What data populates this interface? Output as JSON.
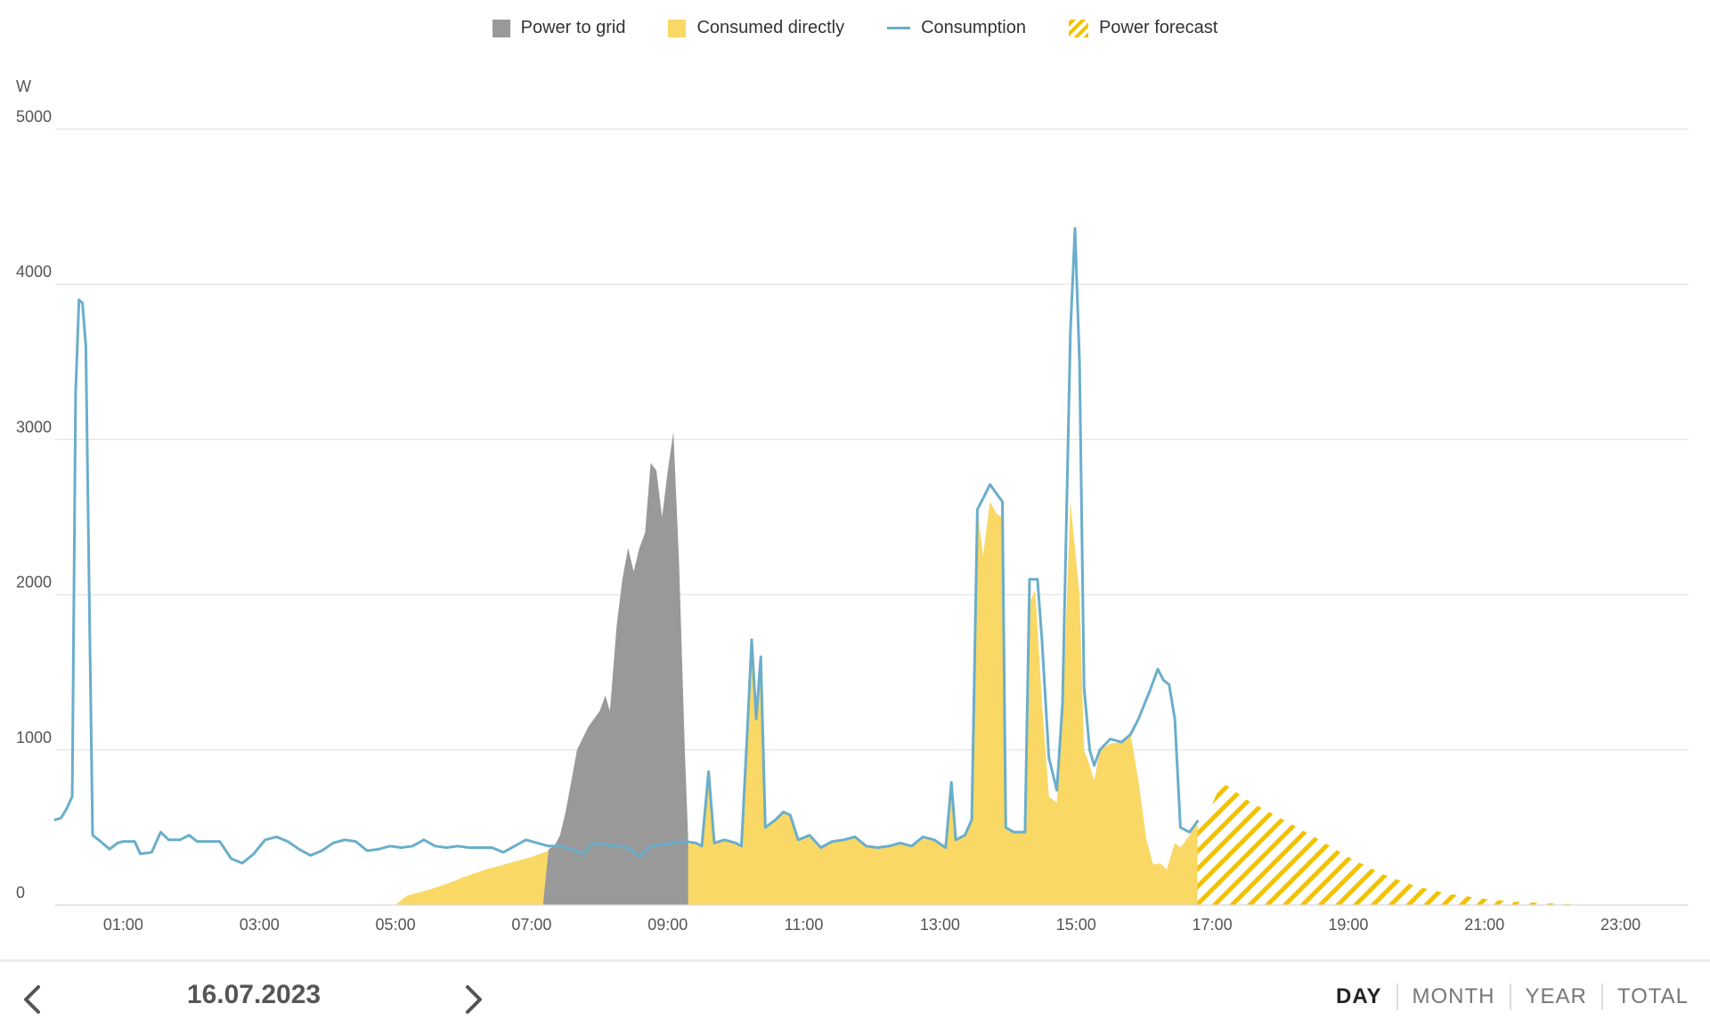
{
  "legend": {
    "grid": "Power to grid",
    "direct": "Consumed directly",
    "consumption": "Consumption",
    "forecast": "Power forecast"
  },
  "colors": {
    "grid": "#999999",
    "direct": "#f9d865",
    "consumption": "#6aaecb",
    "forecast": "#f2c200",
    "gridline": "#e6e6e6"
  },
  "chart_data": {
    "type": "area",
    "ylabel": "W",
    "ylim": [
      0,
      5000
    ],
    "yticks": [
      "0",
      "1000",
      "2000",
      "3000",
      "4000",
      "5000"
    ],
    "xlim": [
      "00:00",
      "24:00"
    ],
    "xticks": [
      "01:00",
      "03:00",
      "05:00",
      "07:00",
      "09:00",
      "11:00",
      "13:00",
      "15:00",
      "17:00",
      "19:00",
      "21:00",
      "23:00"
    ],
    "legend_position": "top",
    "series": [
      {
        "name": "Consumption",
        "kind": "line",
        "points": [
          [
            "00:00",
            550
          ],
          [
            "00:05",
            560
          ],
          [
            "00:10",
            620
          ],
          [
            "00:15",
            700
          ],
          [
            "00:18",
            3300
          ],
          [
            "00:21",
            3900
          ],
          [
            "00:24",
            3880
          ],
          [
            "00:27",
            3600
          ],
          [
            "00:30",
            2000
          ],
          [
            "00:33",
            450
          ],
          [
            "00:40",
            410
          ],
          [
            "00:48",
            360
          ],
          [
            "00:55",
            400
          ],
          [
            "01:00",
            410
          ],
          [
            "01:10",
            410
          ],
          [
            "01:15",
            330
          ],
          [
            "01:25",
            340
          ],
          [
            "01:33",
            470
          ],
          [
            "01:40",
            420
          ],
          [
            "01:50",
            420
          ],
          [
            "01:58",
            450
          ],
          [
            "02:05",
            410
          ],
          [
            "02:15",
            410
          ],
          [
            "02:25",
            410
          ],
          [
            "02:35",
            300
          ],
          [
            "02:45",
            270
          ],
          [
            "02:55",
            330
          ],
          [
            "03:05",
            420
          ],
          [
            "03:15",
            440
          ],
          [
            "03:25",
            410
          ],
          [
            "03:35",
            360
          ],
          [
            "03:45",
            320
          ],
          [
            "03:55",
            350
          ],
          [
            "04:05",
            400
          ],
          [
            "04:15",
            420
          ],
          [
            "04:25",
            410
          ],
          [
            "04:35",
            350
          ],
          [
            "04:45",
            360
          ],
          [
            "04:55",
            380
          ],
          [
            "05:05",
            370
          ],
          [
            "05:15",
            380
          ],
          [
            "05:25",
            420
          ],
          [
            "05:35",
            380
          ],
          [
            "05:45",
            370
          ],
          [
            "05:55",
            380
          ],
          [
            "06:05",
            370
          ],
          [
            "06:15",
            370
          ],
          [
            "06:25",
            370
          ],
          [
            "06:35",
            340
          ],
          [
            "06:45",
            380
          ],
          [
            "06:55",
            420
          ],
          [
            "07:05",
            400
          ],
          [
            "07:15",
            380
          ],
          [
            "07:25",
            380
          ],
          [
            "07:35",
            360
          ],
          [
            "07:45",
            330
          ],
          [
            "07:55",
            400
          ],
          [
            "08:05",
            390
          ],
          [
            "08:15",
            380
          ],
          [
            "08:25",
            370
          ],
          [
            "08:35",
            310
          ],
          [
            "08:45",
            380
          ],
          [
            "08:55",
            390
          ],
          [
            "09:05",
            400
          ],
          [
            "09:15",
            410
          ],
          [
            "09:25",
            400
          ],
          [
            "09:30",
            380
          ],
          [
            "09:36",
            860
          ],
          [
            "09:41",
            400
          ],
          [
            "09:50",
            420
          ],
          [
            "10:00",
            400
          ],
          [
            "10:05",
            380
          ],
          [
            "10:10",
            1100
          ],
          [
            "10:14",
            1710
          ],
          [
            "10:18",
            1200
          ],
          [
            "10:22",
            1600
          ],
          [
            "10:26",
            500
          ],
          [
            "10:35",
            550
          ],
          [
            "10:42",
            600
          ],
          [
            "10:48",
            580
          ],
          [
            "10:55",
            420
          ],
          [
            "11:05",
            450
          ],
          [
            "11:15",
            370
          ],
          [
            "11:25",
            410
          ],
          [
            "11:35",
            420
          ],
          [
            "11:45",
            440
          ],
          [
            "11:55",
            380
          ],
          [
            "12:05",
            370
          ],
          [
            "12:15",
            380
          ],
          [
            "12:25",
            400
          ],
          [
            "12:35",
            380
          ],
          [
            "12:45",
            440
          ],
          [
            "12:55",
            420
          ],
          [
            "13:05",
            370
          ],
          [
            "13:10",
            790
          ],
          [
            "13:14",
            420
          ],
          [
            "13:22",
            450
          ],
          [
            "13:28",
            550
          ],
          [
            "13:33",
            2550
          ],
          [
            "13:38",
            2620
          ],
          [
            "13:44",
            2710
          ],
          [
            "13:50",
            2650
          ],
          [
            "13:55",
            2600
          ],
          [
            "13:58",
            500
          ],
          [
            "14:05",
            470
          ],
          [
            "14:15",
            470
          ],
          [
            "14:19",
            2100
          ],
          [
            "14:26",
            2100
          ],
          [
            "14:30",
            1700
          ],
          [
            "14:36",
            950
          ],
          [
            "14:43",
            740
          ],
          [
            "14:48",
            1300
          ],
          [
            "14:55",
            3700
          ],
          [
            "14:59",
            4360
          ],
          [
            "15:03",
            3500
          ],
          [
            "15:07",
            1400
          ],
          [
            "15:12",
            1000
          ],
          [
            "15:16",
            900
          ],
          [
            "15:21",
            1000
          ],
          [
            "15:30",
            1070
          ],
          [
            "15:40",
            1050
          ],
          [
            "15:48",
            1100
          ],
          [
            "15:55",
            1200
          ],
          [
            "16:05",
            1380
          ],
          [
            "16:12",
            1520
          ],
          [
            "16:17",
            1450
          ],
          [
            "16:22",
            1420
          ],
          [
            "16:27",
            1200
          ],
          [
            "16:32",
            500
          ],
          [
            "16:40",
            470
          ],
          [
            "16:47",
            540
          ]
        ]
      },
      {
        "name": "Consumed directly",
        "kind": "area",
        "points": [
          [
            "05:00",
            0
          ],
          [
            "05:10",
            60
          ],
          [
            "05:30",
            100
          ],
          [
            "05:50",
            150
          ],
          [
            "06:00",
            180
          ],
          [
            "06:20",
            230
          ],
          [
            "06:40",
            270
          ],
          [
            "07:00",
            310
          ],
          [
            "07:15",
            350
          ],
          [
            "07:30",
            370
          ],
          [
            "07:45",
            360
          ],
          [
            "08:00",
            390
          ],
          [
            "08:15",
            370
          ],
          [
            "08:30",
            340
          ],
          [
            "08:45",
            360
          ],
          [
            "09:00",
            380
          ],
          [
            "09:15",
            390
          ],
          [
            "09:25",
            400
          ],
          [
            "09:30",
            380
          ],
          [
            "09:36",
            860
          ],
          [
            "09:41",
            400
          ],
          [
            "09:50",
            420
          ],
          [
            "10:00",
            400
          ],
          [
            "10:05",
            380
          ],
          [
            "10:10",
            1100
          ],
          [
            "10:14",
            1710
          ],
          [
            "10:18",
            1200
          ],
          [
            "10:22",
            1600
          ],
          [
            "10:26",
            500
          ],
          [
            "10:35",
            550
          ],
          [
            "10:42",
            600
          ],
          [
            "10:48",
            580
          ],
          [
            "10:55",
            420
          ],
          [
            "11:05",
            450
          ],
          [
            "11:15",
            370
          ],
          [
            "11:25",
            410
          ],
          [
            "11:35",
            420
          ],
          [
            "11:45",
            440
          ],
          [
            "11:55",
            380
          ],
          [
            "12:05",
            370
          ],
          [
            "12:15",
            380
          ],
          [
            "12:25",
            400
          ],
          [
            "12:35",
            380
          ],
          [
            "12:45",
            440
          ],
          [
            "12:55",
            420
          ],
          [
            "13:05",
            370
          ],
          [
            "13:10",
            790
          ],
          [
            "13:14",
            420
          ],
          [
            "13:22",
            450
          ],
          [
            "13:28",
            550
          ],
          [
            "13:33",
            2550
          ],
          [
            "13:38",
            2250
          ],
          [
            "13:44",
            2600
          ],
          [
            "13:50",
            2520
          ],
          [
            "13:55",
            2500
          ],
          [
            "13:58",
            500
          ],
          [
            "14:05",
            470
          ],
          [
            "14:15",
            470
          ],
          [
            "14:19",
            1950
          ],
          [
            "14:24",
            2030
          ],
          [
            "14:30",
            1300
          ],
          [
            "14:36",
            700
          ],
          [
            "14:43",
            660
          ],
          [
            "14:48",
            1200
          ],
          [
            "14:55",
            2600
          ],
          [
            "14:59",
            2300
          ],
          [
            "15:03",
            2000
          ],
          [
            "15:07",
            1000
          ],
          [
            "15:12",
            900
          ],
          [
            "15:16",
            800
          ],
          [
            "15:21",
            1000
          ],
          [
            "15:30",
            1040
          ],
          [
            "15:40",
            1050
          ],
          [
            "15:48",
            1100
          ],
          [
            "15:55",
            800
          ],
          [
            "16:02",
            420
          ],
          [
            "16:08",
            260
          ],
          [
            "16:14",
            270
          ],
          [
            "16:20",
            230
          ],
          [
            "16:27",
            400
          ],
          [
            "16:32",
            370
          ],
          [
            "16:40",
            450
          ],
          [
            "16:47",
            540
          ],
          [
            "16:47",
            0
          ]
        ]
      },
      {
        "name": "Power to grid",
        "kind": "area",
        "points": [
          [
            "07:10",
            0
          ],
          [
            "07:15",
            360
          ],
          [
            "07:20",
            380
          ],
          [
            "07:25",
            450
          ],
          [
            "07:30",
            600
          ],
          [
            "07:35",
            800
          ],
          [
            "07:40",
            1000
          ],
          [
            "07:50",
            1150
          ],
          [
            "08:00",
            1250
          ],
          [
            "08:05",
            1350
          ],
          [
            "08:09",
            1250
          ],
          [
            "08:15",
            1800
          ],
          [
            "08:20",
            2100
          ],
          [
            "08:25",
            2300
          ],
          [
            "08:30",
            2150
          ],
          [
            "08:35",
            2300
          ],
          [
            "08:40",
            2400
          ],
          [
            "08:45",
            2850
          ],
          [
            "08:50",
            2800
          ],
          [
            "08:55",
            2500
          ],
          [
            "09:00",
            2800
          ],
          [
            "09:05",
            3050
          ],
          [
            "09:10",
            2200
          ],
          [
            "09:15",
            1000
          ],
          [
            "09:18",
            420
          ],
          [
            "09:18",
            0
          ]
        ]
      },
      {
        "name": "Power forecast",
        "kind": "hatched-area",
        "points": [
          [
            "16:47",
            550
          ],
          [
            "17:00",
            650
          ],
          [
            "17:08",
            790
          ],
          [
            "17:15",
            760
          ],
          [
            "17:30",
            680
          ],
          [
            "18:00",
            560
          ],
          [
            "18:30",
            440
          ],
          [
            "19:00",
            310
          ],
          [
            "19:30",
            200
          ],
          [
            "20:00",
            120
          ],
          [
            "20:30",
            70
          ],
          [
            "21:00",
            40
          ],
          [
            "21:30",
            20
          ],
          [
            "22:00",
            10
          ],
          [
            "22:30",
            0
          ],
          [
            "22:30",
            0
          ],
          [
            "16:47",
            0
          ]
        ]
      }
    ]
  },
  "footer": {
    "date": "16.07.2023",
    "periods": [
      "DAY",
      "MONTH",
      "YEAR",
      "TOTAL"
    ],
    "active_period": "DAY"
  }
}
